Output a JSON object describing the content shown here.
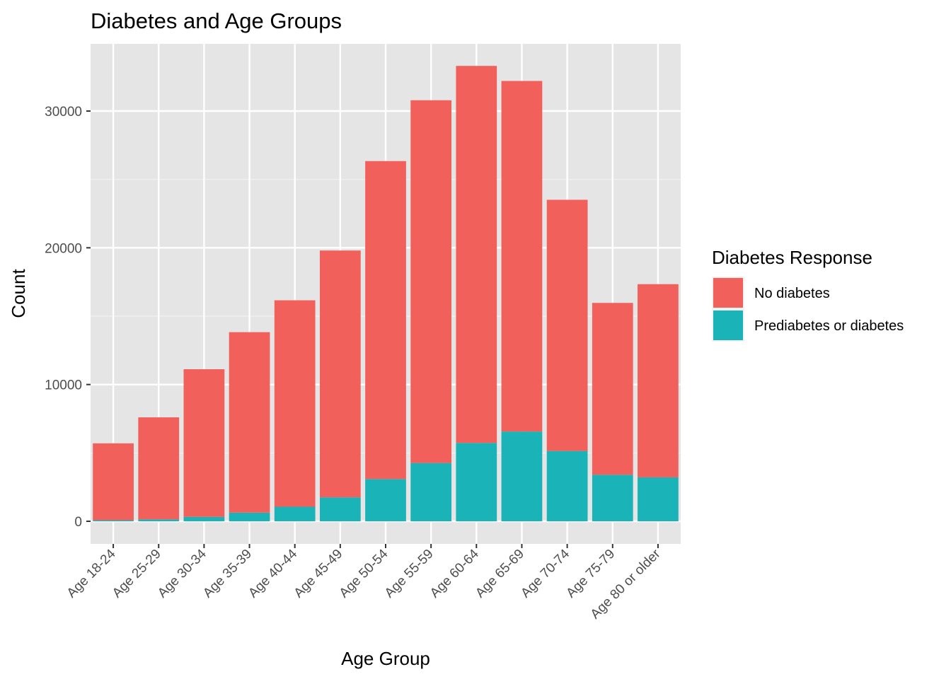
{
  "chart_data": {
    "type": "bar",
    "stacked": true,
    "title": "Diabetes and Age Groups",
    "xlabel": "Age Group",
    "ylabel": "Count",
    "ylim": [
      -1700,
      35000
    ],
    "yticks": [
      0,
      10000,
      20000,
      30000
    ],
    "ytick_labels": [
      "0",
      "10000",
      "20000",
      "30000"
    ],
    "grid": true,
    "legend_title": "Diabetes Response",
    "legend_position": "right",
    "categories": [
      "Age 18-24",
      "Age 25-29",
      "Age 30-34",
      "Age 35-39",
      "Age 40-44",
      "Age 45-49",
      "Age 50-54",
      "Age 55-59",
      "Age 60-64",
      "Age 65-69",
      "Age 70-74",
      "Age 75-79",
      "Age 80 or older"
    ],
    "series": [
      {
        "name": "Prediabetes or diabetes",
        "color": "#1ab3b7",
        "values": [
          80,
          140,
          320,
          630,
          1060,
          1750,
          3090,
          4260,
          5730,
          6560,
          5140,
          3400,
          3210
        ]
      },
      {
        "name": "No diabetes",
        "color": "#f2605c",
        "values": [
          5620,
          7460,
          10800,
          13200,
          15100,
          18050,
          23250,
          26530,
          27570,
          25640,
          18370,
          12570,
          14130
        ]
      }
    ]
  }
}
